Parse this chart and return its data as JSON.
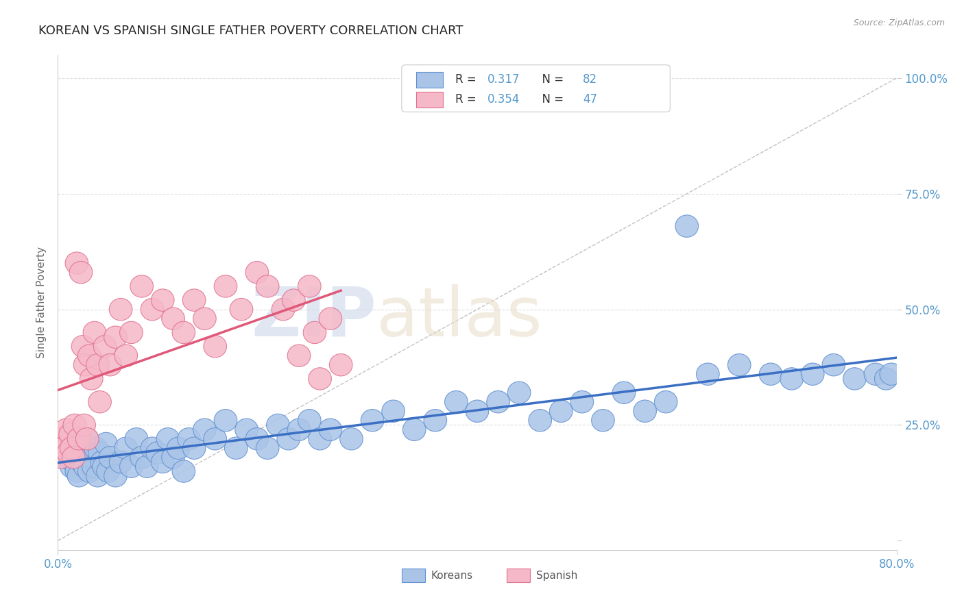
{
  "title": "KOREAN VS SPANISH SINGLE FATHER POVERTY CORRELATION CHART",
  "source_text": "Source: ZipAtlas.com",
  "ylabel": "Single Father Poverty",
  "xlim": [
    0.0,
    0.8
  ],
  "ylim": [
    -0.02,
    1.05
  ],
  "yticks": [
    0.0,
    0.25,
    0.5,
    0.75,
    1.0
  ],
  "yticklabels": [
    "",
    "25.0%",
    "50.0%",
    "75.0%",
    "100.0%"
  ],
  "korean_R": 0.317,
  "korean_N": 82,
  "spanish_R": 0.354,
  "spanish_N": 47,
  "korean_color": "#aac4e8",
  "spanish_color": "#f5b8c8",
  "korean_edge_color": "#6090d0",
  "spanish_edge_color": "#e07090",
  "korean_line_color": "#3a6fc4",
  "spanish_line_color": "#e05878",
  "ref_line_color": "#bbbbbb",
  "grid_color": "#dddddd",
  "title_color": "#222222",
  "axis_label_color": "#666666",
  "tick_label_color": "#5599cc",
  "background_color": "#ffffff",
  "korean_x": [
    0.005,
    0.008,
    0.01,
    0.012,
    0.013,
    0.015,
    0.016,
    0.018,
    0.019,
    0.02,
    0.022,
    0.023,
    0.025,
    0.026,
    0.028,
    0.03,
    0.032,
    0.034,
    0.036,
    0.038,
    0.04,
    0.042,
    0.044,
    0.046,
    0.048,
    0.05,
    0.055,
    0.06,
    0.065,
    0.07,
    0.075,
    0.08,
    0.085,
    0.09,
    0.095,
    0.1,
    0.105,
    0.11,
    0.115,
    0.12,
    0.125,
    0.13,
    0.14,
    0.15,
    0.16,
    0.17,
    0.18,
    0.19,
    0.2,
    0.21,
    0.22,
    0.23,
    0.24,
    0.25,
    0.26,
    0.28,
    0.3,
    0.32,
    0.34,
    0.36,
    0.38,
    0.4,
    0.42,
    0.44,
    0.46,
    0.48,
    0.5,
    0.52,
    0.54,
    0.56,
    0.58,
    0.6,
    0.62,
    0.65,
    0.68,
    0.7,
    0.72,
    0.74,
    0.76,
    0.78,
    0.79,
    0.795
  ],
  "korean_y": [
    0.18,
    0.2,
    0.22,
    0.19,
    0.16,
    0.17,
    0.21,
    0.15,
    0.19,
    0.14,
    0.2,
    0.17,
    0.18,
    0.16,
    0.22,
    0.15,
    0.18,
    0.16,
    0.2,
    0.14,
    0.19,
    0.17,
    0.16,
    0.21,
    0.15,
    0.18,
    0.14,
    0.17,
    0.2,
    0.16,
    0.22,
    0.18,
    0.16,
    0.2,
    0.19,
    0.17,
    0.22,
    0.18,
    0.2,
    0.15,
    0.22,
    0.2,
    0.24,
    0.22,
    0.26,
    0.2,
    0.24,
    0.22,
    0.2,
    0.25,
    0.22,
    0.24,
    0.26,
    0.22,
    0.24,
    0.22,
    0.26,
    0.28,
    0.24,
    0.26,
    0.3,
    0.28,
    0.3,
    0.32,
    0.26,
    0.28,
    0.3,
    0.26,
    0.32,
    0.28,
    0.3,
    0.68,
    0.36,
    0.38,
    0.36,
    0.35,
    0.36,
    0.38,
    0.35,
    0.36,
    0.35,
    0.36
  ],
  "spanish_x": [
    0.003,
    0.005,
    0.006,
    0.008,
    0.01,
    0.012,
    0.013,
    0.015,
    0.016,
    0.018,
    0.02,
    0.022,
    0.024,
    0.025,
    0.026,
    0.028,
    0.03,
    0.032,
    0.035,
    0.038,
    0.04,
    0.045,
    0.05,
    0.055,
    0.06,
    0.065,
    0.07,
    0.08,
    0.09,
    0.1,
    0.11,
    0.12,
    0.13,
    0.14,
    0.15,
    0.16,
    0.175,
    0.19,
    0.2,
    0.215,
    0.225,
    0.23,
    0.24,
    0.245,
    0.25,
    0.26,
    0.27
  ],
  "spanish_y": [
    0.18,
    0.22,
    0.2,
    0.24,
    0.19,
    0.23,
    0.2,
    0.18,
    0.25,
    0.6,
    0.22,
    0.58,
    0.42,
    0.25,
    0.38,
    0.22,
    0.4,
    0.35,
    0.45,
    0.38,
    0.3,
    0.42,
    0.38,
    0.44,
    0.5,
    0.4,
    0.45,
    0.55,
    0.5,
    0.52,
    0.48,
    0.45,
    0.52,
    0.48,
    0.42,
    0.55,
    0.5,
    0.58,
    0.55,
    0.5,
    0.52,
    0.4,
    0.55,
    0.45,
    0.35,
    0.48,
    0.38
  ]
}
